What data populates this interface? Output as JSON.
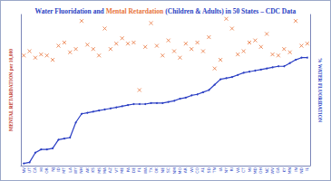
{
  "chart_data": {
    "type": "line",
    "title": "Water Fluoridation and Mental Retardation (Children & Adults) in 50 States – CDC Data",
    "categories": [
      "NV",
      "UT",
      "CA",
      "HI",
      "OR",
      "NJ",
      "ID",
      "MT",
      "LA",
      "WY",
      "NH",
      "AK",
      "KS",
      "MS",
      "MA",
      "AZ",
      "VT",
      "ME",
      "PA",
      "DE",
      "FL",
      "WA",
      "TX",
      "OK",
      "NE",
      "SC",
      "NM",
      "MO",
      "AR",
      "WI",
      "CO",
      "AL",
      "SD",
      "TN",
      "IA",
      "NY",
      "RI",
      "VA",
      "CT",
      "MI",
      "MD",
      "OH",
      "NC",
      "WV",
      "GA",
      "KY",
      "MN",
      "IN",
      "ND",
      "IL"
    ],
    "series": [
      {
        "name": "Water Fluoridation",
        "type": "line",
        "color": "#2b3fc4",
        "marker": "circle",
        "axis": "y2",
        "values": [
          2,
          3,
          12,
          15,
          15,
          16,
          24,
          25,
          26,
          40,
          48,
          49,
          50,
          51,
          52,
          53,
          54,
          55,
          56,
          57,
          57,
          57,
          58,
          58,
          58,
          59,
          60,
          62,
          63,
          65,
          66,
          68,
          70,
          75,
          80,
          81,
          82,
          84,
          86,
          87,
          88,
          89,
          90,
          91,
          92,
          92,
          95,
          98,
          100,
          100
        ]
      },
      {
        "name": "Mental Retardation",
        "type": "scatter",
        "color": "#e8743b",
        "marker": "x",
        "values": [
          102,
          106,
          100,
          103,
          102,
          98,
          111,
          114,
          105,
          108,
          134,
          112,
          108,
          102,
          127,
          108,
          113,
          118,
          113,
          114,
          70,
          110,
          132,
          111,
          102,
          116,
          106,
          100,
          113,
          108,
          114,
          106,
          119,
          90,
          98,
          136,
          127,
          103,
          106,
          114,
          116,
          110,
          122,
          103,
          102,
          108,
          105,
          134,
          111,
          113
        ]
      }
    ],
    "ylabel": "MENTAL RETARDATION per 10,000",
    "y2label": "% WATER FLUORIDATION",
    "ylim": [
      0,
      140
    ],
    "y2lim": [
      0,
      140
    ],
    "grid": false,
    "tick_labels": "x"
  }
}
